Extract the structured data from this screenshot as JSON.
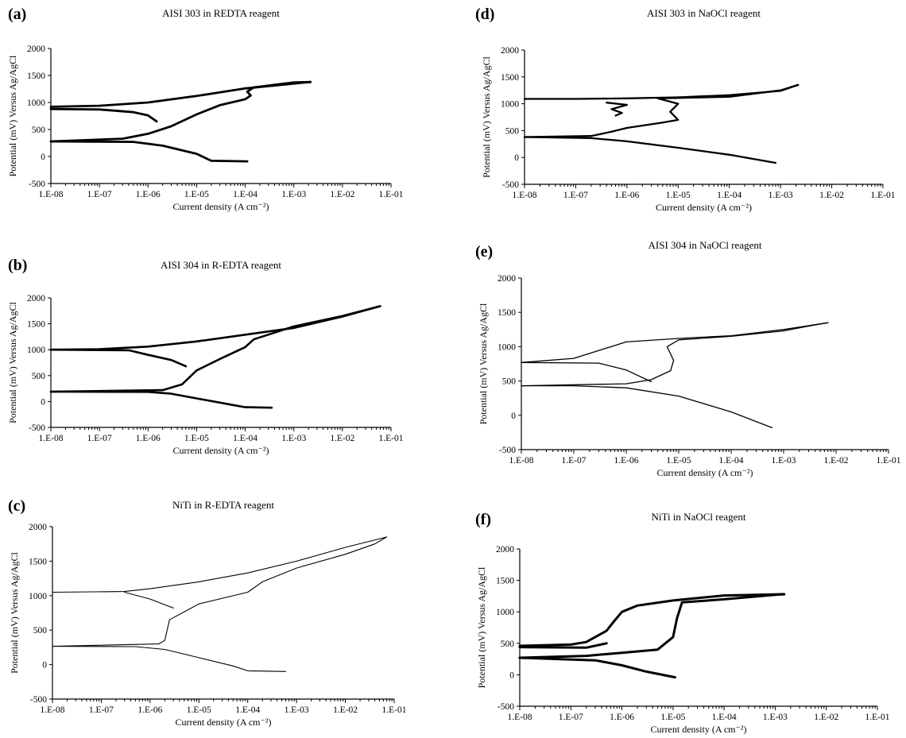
{
  "figure": {
    "panels": [
      {
        "letter": "(a)",
        "title": "AISI 303 in REDTA reagent",
        "ylabel": "Potential (mV) Versus Ag/AgCl",
        "xlabel": "Current density (A cm⁻²)"
      },
      {
        "letter": "(b)",
        "title": "AISI 304 in R-EDTA reagent",
        "ylabel": "Potential (mV) Versus Ag/AgCl",
        "xlabel": "Current density (A cm⁻²)"
      },
      {
        "letter": "(c)",
        "title": "NiTi in R-EDTA reagent",
        "ylabel": "Potential (mV) Versus Ag/AgCl",
        "xlabel": "Current density (A cm⁻²)"
      },
      {
        "letter": "(d)",
        "title": "AISI 303 in NaOCl reagent",
        "ylabel": "Potential (mV) Versus Ag/AgCl",
        "xlabel": "Current density (A cm⁻²)"
      },
      {
        "letter": "(e)",
        "title": "AISI 304 in NaOCl reagent",
        "ylabel": "Potential (mV) Versus Ag/AgCl",
        "xlabel": "Current density (A cm⁻²)"
      },
      {
        "letter": "(f)",
        "title": "NiTi in NaOCl reagent",
        "ylabel": "Potential (mV) Versus Ag/AgCl",
        "xlabel": "Current density (A cm⁻²)"
      }
    ]
  },
  "chart_data": [
    {
      "type": "line",
      "title": "AISI 303 in REDTA reagent",
      "xlabel": "Current density (A cm⁻²)",
      "ylabel": "Potential (mV) Versus Ag/AgCl",
      "x_scale": "log",
      "xlim": [
        1e-08,
        0.1
      ],
      "ylim": [
        -500,
        2000
      ],
      "x_ticks": [
        "1.E-08",
        "1.E-07",
        "1.E-06",
        "1.E-05",
        "1.E-04",
        "1.E-03",
        "1.E-02",
        "1.E-01"
      ],
      "y_ticks": [
        -500,
        0,
        500,
        1000,
        1500,
        2000
      ],
      "series": [
        {
          "points": [
            [
              1e-08,
              280
            ],
            [
              1e-07,
              275
            ],
            [
              5e-07,
              270
            ],
            [
              2e-06,
              200
            ],
            [
              1e-05,
              50
            ],
            [
              2e-05,
              -80
            ],
            [
              0.00011,
              -90
            ]
          ]
        },
        {
          "points": [
            [
              1e-08,
              280
            ],
            [
              3e-07,
              330
            ],
            [
              1e-06,
              420
            ],
            [
              3e-06,
              560
            ],
            [
              1e-05,
              780
            ],
            [
              3e-05,
              950
            ],
            [
              0.0001,
              1060
            ],
            [
              0.00013,
              1130
            ],
            [
              0.00011,
              1200
            ],
            [
              0.00015,
              1280
            ],
            [
              0.001,
              1370
            ],
            [
              0.0022,
              1380
            ]
          ]
        },
        {
          "points": [
            [
              0.0022,
              1380
            ],
            [
              0.001,
              1350
            ],
            [
              0.0001,
              1260
            ],
            [
              1e-05,
              1120
            ],
            [
              1e-06,
              1000
            ],
            [
              1e-07,
              940
            ],
            [
              1e-08,
              920
            ]
          ]
        },
        {
          "points": [
            [
              1e-08,
              880
            ],
            [
              1e-07,
              870
            ],
            [
              5e-07,
              820
            ],
            [
              1e-06,
              760
            ],
            [
              1.5e-06,
              650
            ]
          ]
        }
      ]
    },
    {
      "type": "line",
      "title": "AISI 304 in R-EDTA reagent",
      "xlabel": "Current density (A cm⁻²)",
      "ylabel": "Potential (mV) Versus Ag/AgCl",
      "x_scale": "log",
      "xlim": [
        1e-08,
        0.1
      ],
      "ylim": [
        -500,
        2000
      ],
      "x_ticks": [
        "1.E-08",
        "1.E-07",
        "1.E-06",
        "1.E-05",
        "1.E-04",
        "1.E-03",
        "1.E-02",
        "1.E-01"
      ],
      "y_ticks": [
        -500,
        0,
        500,
        1000,
        1500,
        2000
      ],
      "series": [
        {
          "points": [
            [
              1e-08,
              190
            ],
            [
              1e-06,
              185
            ],
            [
              3e-06,
              150
            ],
            [
              1e-05,
              60
            ],
            [
              5e-05,
              -60
            ],
            [
              0.0001,
              -110
            ],
            [
              0.00035,
              -120
            ]
          ]
        },
        {
          "points": [
            [
              1e-08,
              190
            ],
            [
              2e-06,
              220
            ],
            [
              5e-06,
              330
            ],
            [
              1e-05,
              600
            ],
            [
              3e-05,
              820
            ],
            [
              0.0001,
              1050
            ],
            [
              0.00015,
              1200
            ],
            [
              0.001,
              1450
            ],
            [
              0.01,
              1650
            ],
            [
              0.06,
              1840
            ]
          ]
        },
        {
          "points": [
            [
              0.06,
              1840
            ],
            [
              0.01,
              1640
            ],
            [
              0.001,
              1420
            ],
            [
              0.0001,
              1290
            ],
            [
              1e-05,
              1160
            ],
            [
              1e-06,
              1060
            ],
            [
              1e-07,
              1010
            ],
            [
              1e-08,
              1000
            ]
          ]
        },
        {
          "points": [
            [
              1e-08,
              1000
            ],
            [
              4e-07,
              990
            ],
            [
              1e-06,
              900
            ],
            [
              3e-06,
              800
            ],
            [
              6e-06,
              680
            ]
          ]
        }
      ]
    },
    {
      "type": "line",
      "title": "NiTi in R-EDTA reagent",
      "xlabel": "Current density (A cm⁻²)",
      "ylabel": "Potential (mV) Versus Ag/AgCl",
      "x_scale": "log",
      "xlim": [
        1e-08,
        0.1
      ],
      "ylim": [
        -500,
        2000
      ],
      "x_ticks": [
        "1.E-08",
        "1.E-07",
        "1.E-06",
        "1.E-05",
        "1.E-04",
        "1.E-03",
        "1.E-02",
        "1.E-01"
      ],
      "y_ticks": [
        -500,
        0,
        500,
        1000,
        1500,
        2000
      ],
      "series": [
        {
          "points": [
            [
              1e-08,
              265
            ],
            [
              5e-07,
              260
            ],
            [
              2e-06,
              220
            ],
            [
              1e-05,
              100
            ],
            [
              5e-05,
              -20
            ],
            [
              0.0001,
              -90
            ],
            [
              0.0006,
              -100
            ]
          ]
        },
        {
          "points": [
            [
              1e-08,
              265
            ],
            [
              1.5e-06,
              300
            ],
            [
              2e-06,
              350
            ],
            [
              2.5e-06,
              650
            ],
            [
              1e-05,
              880
            ],
            [
              0.0001,
              1050
            ],
            [
              0.0002,
              1200
            ],
            [
              0.001,
              1400
            ],
            [
              0.01,
              1600
            ],
            [
              0.04,
              1750
            ],
            [
              0.07,
              1850
            ]
          ]
        },
        {
          "points": [
            [
              0.07,
              1850
            ],
            [
              0.01,
              1700
            ],
            [
              0.001,
              1500
            ],
            [
              0.0001,
              1330
            ],
            [
              1e-05,
              1200
            ],
            [
              1e-06,
              1100
            ],
            [
              3e-07,
              1060
            ],
            [
              1e-08,
              1050
            ]
          ]
        },
        {
          "points": [
            [
              3e-07,
              1050
            ],
            [
              1e-06,
              950
            ],
            [
              3e-06,
              820
            ]
          ]
        }
      ]
    },
    {
      "type": "line",
      "title": "AISI 303 in NaOCl reagent",
      "xlabel": "Current density (A cm⁻²)",
      "ylabel": "Potential (mV) Versus Ag/AgCl",
      "x_scale": "log",
      "xlim": [
        1e-08,
        0.1
      ],
      "ylim": [
        -500,
        2000
      ],
      "x_ticks": [
        "1.E-08",
        "1.E-07",
        "1.E-06",
        "1.E-05",
        "1.E-04",
        "1.E-03",
        "1.E-02",
        "1.E-01"
      ],
      "y_ticks": [
        -500,
        0,
        500,
        1000,
        1500,
        2000
      ],
      "series": [
        {
          "points": [
            [
              1e-08,
              380
            ],
            [
              2e-07,
              360
            ],
            [
              1e-06,
              300
            ],
            [
              1e-05,
              180
            ],
            [
              0.0001,
              50
            ],
            [
              0.0008,
              -100
            ]
          ]
        },
        {
          "points": [
            [
              1e-08,
              380
            ],
            [
              2e-07,
              400
            ],
            [
              5e-07,
              480
            ],
            [
              1e-06,
              550
            ],
            [
              5e-06,
              650
            ],
            [
              1e-05,
              700
            ],
            [
              7e-06,
              850
            ],
            [
              1e-05,
              1000
            ],
            [
              4e-06,
              1100
            ],
            [
              0.0001,
              1130
            ],
            [
              0.001,
              1250
            ],
            [
              0.0022,
              1350
            ]
          ]
        },
        {
          "points": [
            [
              0.0022,
              1350
            ],
            [
              0.001,
              1240
            ],
            [
              0.0001,
              1160
            ],
            [
              1e-05,
              1120
            ],
            [
              1e-06,
              1100
            ],
            [
              1e-07,
              1090
            ],
            [
              1e-08,
              1090
            ]
          ]
        },
        {
          "points": [
            [
              4e-07,
              1020
            ],
            [
              1e-06,
              980
            ],
            [
              5e-07,
              900
            ],
            [
              8e-07,
              830
            ],
            [
              6e-07,
              780
            ]
          ]
        }
      ]
    },
    {
      "type": "line",
      "title": "AISI 304 in NaOCl reagent",
      "xlabel": "Current density (A cm⁻²)",
      "ylabel": "Potential (mV) Versus Ag/AgCl",
      "x_scale": "log",
      "xlim": [
        1e-08,
        0.1
      ],
      "ylim": [
        -500,
        2000
      ],
      "x_ticks": [
        "1.E-08",
        "1.E-07",
        "1.E-06",
        "1.E-05",
        "1.E-04",
        "1.E-03",
        "1.E-02",
        "1.E-01"
      ],
      "y_ticks": [
        -500,
        0,
        500,
        1000,
        1500,
        2000
      ],
      "series": [
        {
          "points": [
            [
              1e-08,
              430
            ],
            [
              1e-07,
              430
            ],
            [
              1e-06,
              400
            ],
            [
              1e-05,
              280
            ],
            [
              0.0001,
              50
            ],
            [
              0.0006,
              -180
            ]
          ]
        },
        {
          "points": [
            [
              1e-08,
              430
            ],
            [
              1e-06,
              460
            ],
            [
              3e-06,
              520
            ],
            [
              7e-06,
              650
            ],
            [
              8e-06,
              800
            ],
            [
              6e-06,
              1000
            ],
            [
              1e-05,
              1100
            ],
            [
              0.0001,
              1150
            ],
            [
              0.001,
              1230
            ],
            [
              0.003,
              1300
            ],
            [
              0.007,
              1350
            ]
          ]
        },
        {
          "points": [
            [
              0.007,
              1350
            ],
            [
              0.001,
              1250
            ],
            [
              0.0001,
              1160
            ],
            [
              1e-05,
              1120
            ],
            [
              1e-06,
              1070
            ],
            [
              1e-07,
              830
            ],
            [
              1e-08,
              770
            ]
          ]
        },
        {
          "points": [
            [
              1e-08,
              770
            ],
            [
              3e-07,
              760
            ],
            [
              1e-06,
              660
            ],
            [
              3e-06,
              490
            ]
          ]
        }
      ]
    },
    {
      "type": "line",
      "title": "NiTi in NaOCl reagent",
      "xlabel": "Current density (A cm⁻²)",
      "ylabel": "Potential (mV) Versus Ag/AgCl",
      "x_scale": "log",
      "xlim": [
        1e-08,
        0.1
      ],
      "ylim": [
        -500,
        2000
      ],
      "x_ticks": [
        "1.E-08",
        "1.E-07",
        "1.E-06",
        "1.E-05",
        "1.E-04",
        "1.E-03",
        "1.E-02",
        "1.E-01"
      ],
      "y_ticks": [
        -500,
        0,
        500,
        1000,
        1500,
        2000
      ],
      "series": [
        {
          "points": [
            [
              1e-08,
              270
            ],
            [
              3e-07,
              230
            ],
            [
              1e-06,
              150
            ],
            [
              3e-06,
              50
            ],
            [
              1.1e-05,
              -40
            ]
          ]
        },
        {
          "points": [
            [
              1e-08,
              270
            ],
            [
              2e-07,
              300
            ],
            [
              1e-06,
              350
            ],
            [
              5e-06,
              400
            ],
            [
              1e-05,
              600
            ],
            [
              1.2e-05,
              900
            ],
            [
              1.5e-05,
              1150
            ],
            [
              0.0001,
              1200
            ],
            [
              0.001,
              1270
            ],
            [
              0.0015,
              1280
            ]
          ]
        },
        {
          "points": [
            [
              0.0015,
              1280
            ],
            [
              0.0001,
              1260
            ],
            [
              1e-05,
              1180
            ],
            [
              2e-06,
              1100
            ],
            [
              1e-06,
              1000
            ],
            [
              7e-07,
              850
            ],
            [
              5e-07,
              700
            ],
            [
              2e-07,
              520
            ],
            [
              1e-07,
              480
            ],
            [
              1e-08,
              460
            ]
          ]
        },
        {
          "points": [
            [
              1e-08,
              440
            ],
            [
              2e-07,
              430
            ],
            [
              5e-07,
              500
            ]
          ]
        }
      ]
    }
  ]
}
